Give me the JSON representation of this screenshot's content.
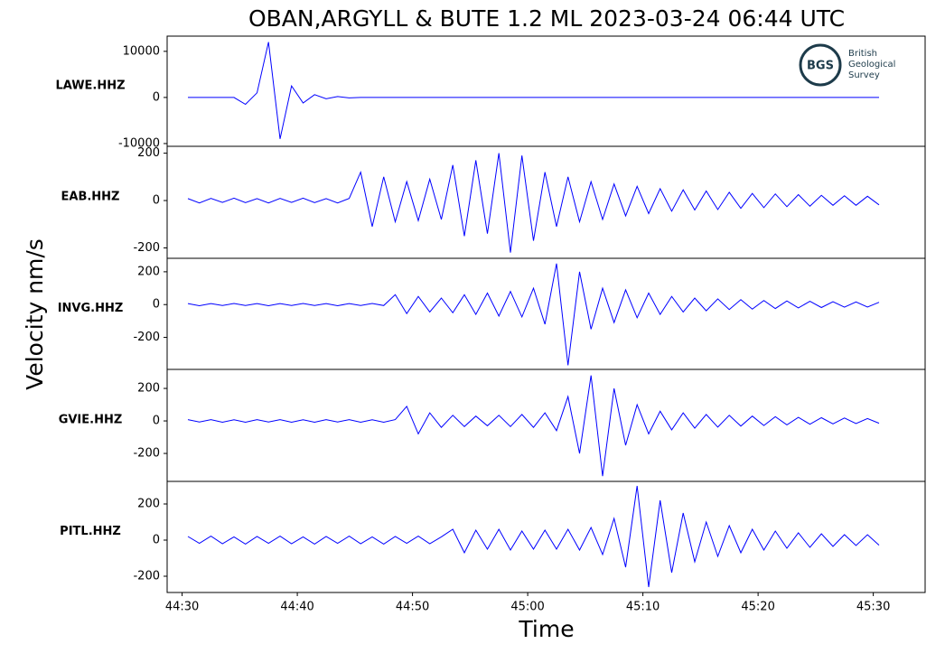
{
  "header": {
    "title": "OBAN,ARGYLL & BUTE 1.2 ML   2023-03-24 06:44 UTC"
  },
  "axis_labels": {
    "x": "Time",
    "y": "Velocity nm/s"
  },
  "logo": {
    "mark": "BGS",
    "lines": [
      "British",
      "Geological",
      "Survey"
    ]
  },
  "chart_data": [
    {
      "type": "line",
      "label": "LAWE.HHZ",
      "color": "#0000ff",
      "xlim": [
        28.7,
        94.5
      ],
      "ylim": [
        -10600,
        13300
      ],
      "yticks": [
        -10000,
        0,
        10000
      ],
      "x": [
        30.5,
        31.5,
        32.5,
        33.5,
        34.5,
        35.5,
        36.5,
        37.5,
        38.5,
        39.5,
        40.5,
        41.5,
        42.5,
        43.5,
        44.5,
        45.5,
        46.5,
        47.5,
        48.5,
        49.5,
        50.5,
        51.5,
        52.5,
        53.5,
        54.5,
        55.5,
        56.5,
        57.5,
        58.5,
        59.5,
        60.5,
        61.5,
        62.5,
        63.5,
        64.5,
        65.5,
        66.5,
        67.5,
        68.5,
        69.5,
        70.5,
        71.5,
        72.5,
        73.5,
        74.5,
        75.5,
        76.5,
        77.5,
        78.5,
        79.5,
        80.5,
        81.5,
        82.5,
        83.5,
        84.5,
        85.5,
        86.5,
        87.5,
        88.5,
        89.5,
        90.5
      ],
      "values": [
        0,
        0,
        0,
        0,
        0,
        -1500,
        1000,
        12000,
        -9000,
        2500,
        -1200,
        600,
        -300,
        200,
        -100,
        0,
        0,
        0,
        0,
        0,
        0,
        0,
        0,
        0,
        0,
        0,
        0,
        0,
        0,
        0,
        0,
        0,
        0,
        0,
        0,
        0,
        0,
        0,
        0,
        0,
        0,
        0,
        0,
        0,
        0,
        0,
        0,
        0,
        0,
        0,
        0,
        0,
        0,
        0,
        0,
        0,
        0,
        0,
        0,
        0,
        0
      ]
    },
    {
      "type": "line",
      "label": "EAB.HHZ",
      "color": "#0000ff",
      "xlim": [
        28.7,
        94.5
      ],
      "ylim": [
        -244,
        229
      ],
      "yticks": [
        -200,
        0,
        200
      ],
      "x": [
        30.5,
        31.5,
        32.5,
        33.5,
        34.5,
        35.5,
        36.5,
        37.5,
        38.5,
        39.5,
        40.5,
        41.5,
        42.5,
        43.5,
        44.5,
        45.5,
        46.5,
        47.5,
        48.5,
        49.5,
        50.5,
        51.5,
        52.5,
        53.5,
        54.5,
        55.5,
        56.5,
        57.5,
        58.5,
        59.5,
        60.5,
        61.5,
        62.5,
        63.5,
        64.5,
        65.5,
        66.5,
        67.5,
        68.5,
        69.5,
        70.5,
        71.5,
        72.5,
        73.5,
        74.5,
        75.5,
        76.5,
        77.5,
        78.5,
        79.5,
        80.5,
        81.5,
        82.5,
        83.5,
        84.5,
        85.5,
        86.5,
        87.5,
        88.5,
        89.5,
        90.5
      ],
      "values": [
        8,
        -10,
        9,
        -8,
        10,
        -9,
        8,
        -10,
        9,
        -8,
        10,
        -9,
        8,
        -10,
        9,
        120,
        -110,
        100,
        -90,
        80,
        -85,
        90,
        -80,
        150,
        -150,
        170,
        -140,
        200,
        -220,
        190,
        -170,
        120,
        -110,
        100,
        -90,
        80,
        -80,
        70,
        -65,
        60,
        -55,
        50,
        -45,
        45,
        -40,
        40,
        -38,
        35,
        -33,
        30,
        -30,
        28,
        -26,
        25,
        -24,
        22,
        -20,
        20,
        -20,
        18,
        -18
      ]
    },
    {
      "type": "line",
      "label": "INVG.HHZ",
      "color": "#0000ff",
      "xlim": [
        28.7,
        94.5
      ],
      "ylim": [
        -395,
        282
      ],
      "yticks": [
        -200,
        0,
        200
      ],
      "x": [
        30.5,
        31.5,
        32.5,
        33.5,
        34.5,
        35.5,
        36.5,
        37.5,
        38.5,
        39.5,
        40.5,
        41.5,
        42.5,
        43.5,
        44.5,
        45.5,
        46.5,
        47.5,
        48.5,
        49.5,
        50.5,
        51.5,
        52.5,
        53.5,
        54.5,
        55.5,
        56.5,
        57.5,
        58.5,
        59.5,
        60.5,
        61.5,
        62.5,
        63.5,
        64.5,
        65.5,
        66.5,
        67.5,
        68.5,
        69.5,
        70.5,
        71.5,
        72.5,
        73.5,
        74.5,
        75.5,
        76.5,
        77.5,
        78.5,
        79.5,
        80.5,
        81.5,
        82.5,
        83.5,
        84.5,
        85.5,
        86.5,
        87.5,
        88.5,
        89.5,
        90.5
      ],
      "values": [
        6,
        -7,
        6,
        -6,
        7,
        -6,
        6,
        -7,
        6,
        -6,
        7,
        -6,
        6,
        -7,
        6,
        -6,
        7,
        -6,
        60,
        -55,
        50,
        -45,
        40,
        -50,
        60,
        -60,
        70,
        -70,
        80,
        -75,
        100,
        -120,
        250,
        -370,
        200,
        -150,
        100,
        -110,
        90,
        -80,
        70,
        -60,
        50,
        -45,
        40,
        -38,
        35,
        -30,
        30,
        -28,
        25,
        -24,
        22,
        -20,
        20,
        -18,
        18,
        -16,
        16,
        -15,
        14
      ]
    },
    {
      "type": "line",
      "label": "GVIE.HHZ",
      "color": "#0000ff",
      "xlim": [
        28.7,
        94.5
      ],
      "ylim": [
        -372,
        317
      ],
      "yticks": [
        -200,
        0,
        200
      ],
      "x": [
        30.5,
        31.5,
        32.5,
        33.5,
        34.5,
        35.5,
        36.5,
        37.5,
        38.5,
        39.5,
        40.5,
        41.5,
        42.5,
        43.5,
        44.5,
        45.5,
        46.5,
        47.5,
        48.5,
        49.5,
        50.5,
        51.5,
        52.5,
        53.5,
        54.5,
        55.5,
        56.5,
        57.5,
        58.5,
        59.5,
        60.5,
        61.5,
        62.5,
        63.5,
        64.5,
        65.5,
        66.5,
        67.5,
        68.5,
        69.5,
        70.5,
        71.5,
        72.5,
        73.5,
        74.5,
        75.5,
        76.5,
        77.5,
        78.5,
        79.5,
        80.5,
        81.5,
        82.5,
        83.5,
        84.5,
        85.5,
        86.5,
        87.5,
        88.5,
        89.5,
        90.5
      ],
      "values": [
        8,
        -7,
        8,
        -8,
        7,
        -8,
        8,
        -7,
        8,
        -8,
        7,
        -8,
        8,
        -7,
        8,
        -8,
        7,
        -8,
        8,
        90,
        -80,
        50,
        -40,
        35,
        -35,
        30,
        -30,
        35,
        -35,
        40,
        -40,
        50,
        -60,
        150,
        -200,
        280,
        -340,
        200,
        -150,
        100,
        -80,
        60,
        -55,
        50,
        -45,
        40,
        -38,
        35,
        -32,
        30,
        -28,
        26,
        -24,
        22,
        -20,
        20,
        -18,
        18,
        -16,
        15,
        -14
      ]
    },
    {
      "type": "line",
      "label": "PITL.HHZ",
      "color": "#0000ff",
      "xlim": [
        28.7,
        94.5
      ],
      "ylim": [
        -290,
        325
      ],
      "yticks": [
        -200,
        0,
        200
      ],
      "xticks": [
        {
          "value": 30,
          "label": "44:30"
        },
        {
          "value": 40,
          "label": "44:40"
        },
        {
          "value": 50,
          "label": "44:50"
        },
        {
          "value": 60,
          "label": "45:00"
        },
        {
          "value": 70,
          "label": "45:10"
        },
        {
          "value": 80,
          "label": "45:20"
        },
        {
          "value": 90,
          "label": "45:30"
        }
      ],
      "x": [
        30.5,
        31.5,
        32.5,
        33.5,
        34.5,
        35.5,
        36.5,
        37.5,
        38.5,
        39.5,
        40.5,
        41.5,
        42.5,
        43.5,
        44.5,
        45.5,
        46.5,
        47.5,
        48.5,
        49.5,
        50.5,
        51.5,
        52.5,
        53.5,
        54.5,
        55.5,
        56.5,
        57.5,
        58.5,
        59.5,
        60.5,
        61.5,
        62.5,
        63.5,
        64.5,
        65.5,
        66.5,
        67.5,
        68.5,
        69.5,
        70.5,
        71.5,
        72.5,
        73.5,
        74.5,
        75.5,
        76.5,
        77.5,
        78.5,
        79.5,
        80.5,
        81.5,
        82.5,
        83.5,
        84.5,
        85.5,
        86.5,
        87.5,
        88.5,
        89.5,
        90.5
      ],
      "values": [
        20,
        -18,
        22,
        -20,
        18,
        -22,
        20,
        -18,
        22,
        -20,
        18,
        -22,
        20,
        -18,
        22,
        -20,
        18,
        -22,
        20,
        -18,
        22,
        -20,
        18,
        60,
        -70,
        55,
        -50,
        60,
        -55,
        50,
        -50,
        55,
        -50,
        60,
        -55,
        70,
        -80,
        120,
        -150,
        300,
        -260,
        220,
        -180,
        150,
        -120,
        100,
        -90,
        80,
        -70,
        60,
        -55,
        50,
        -45,
        40,
        -40,
        35,
        -35,
        30,
        -30,
        30,
        -28
      ]
    }
  ]
}
